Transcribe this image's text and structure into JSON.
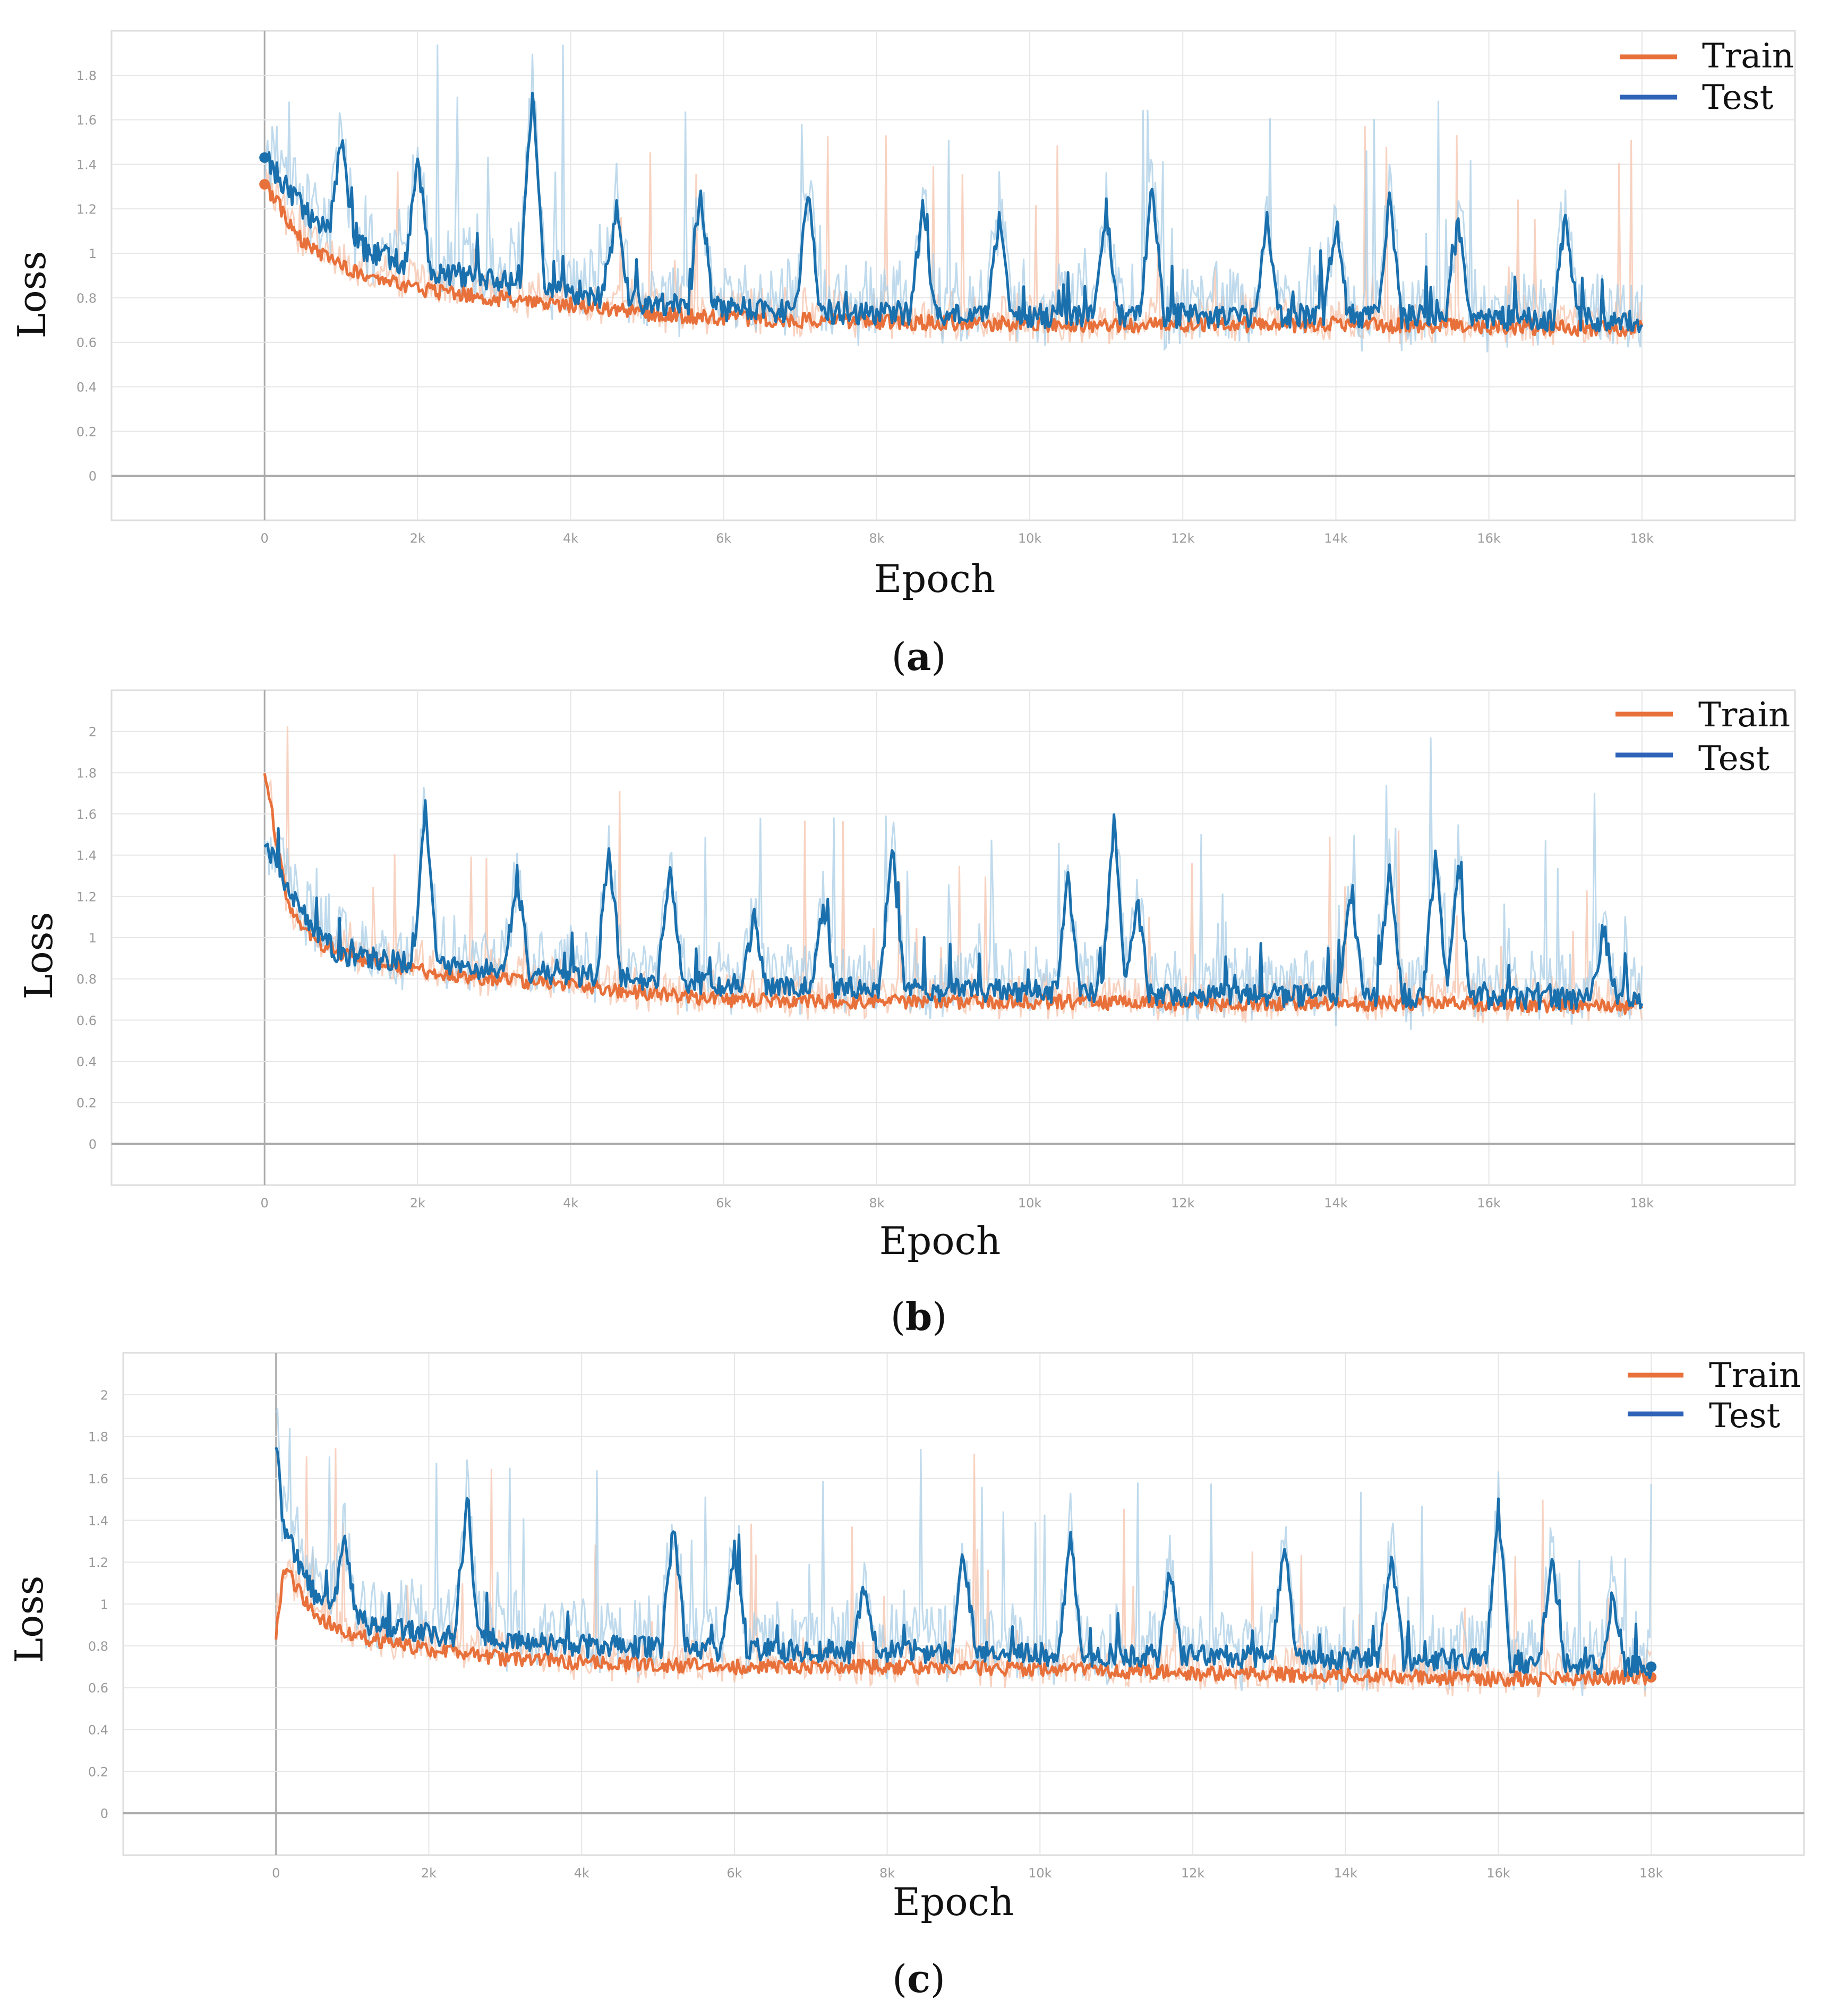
{
  "colors": {
    "train": "#e8703a",
    "test": "#1a6fad",
    "test_light": "#a9cde6",
    "train_light": "#f6c3ab",
    "grid": "#e6e6e6",
    "zero_line": "#aaaaaa",
    "frame": "#dddddd"
  },
  "chart_data": [
    {
      "type": "line",
      "panel": "a",
      "caption_open": "(",
      "caption_letter": "a",
      "caption_close": ")",
      "xlabel": "Epoch",
      "ylabel": "Loss",
      "xlim": [
        -2000,
        20000
      ],
      "ylim": [
        -0.2,
        2.0
      ],
      "x_ticks": [
        0,
        2000,
        4000,
        6000,
        8000,
        10000,
        12000,
        14000,
        16000,
        18000
      ],
      "x_tick_labels": [
        "0",
        "2k",
        "4k",
        "6k",
        "8k",
        "10k",
        "12k",
        "14k",
        "16k",
        "18k"
      ],
      "y_ticks": [
        0,
        0.2,
        0.4,
        0.6,
        0.8,
        1,
        1.2,
        1.4,
        1.6,
        1.8
      ],
      "y_tick_labels": [
        "0",
        "0.2",
        "0.4",
        "0.6",
        "0.8",
        "1",
        "1.2",
        "1.4",
        "1.6",
        "1.8"
      ],
      "legend": [
        "Train",
        "Test"
      ],
      "legend_position": "top-right",
      "series": [
        {
          "name": "Train",
          "x": [
            0,
            500,
            1000,
            1500,
            2000,
            3000,
            4000,
            5000,
            6000,
            8000,
            10000,
            12000,
            14000,
            16000,
            18000
          ],
          "values": [
            1.31,
            1.05,
            0.95,
            0.88,
            0.84,
            0.8,
            0.77,
            0.73,
            0.71,
            0.69,
            0.68,
            0.68,
            0.68,
            0.67,
            0.66
          ],
          "spikes": []
        },
        {
          "name": "Test",
          "x": [
            0,
            500,
            1000,
            1500,
            2000,
            3000,
            4000,
            5000,
            6000,
            8000,
            10000,
            12000,
            14000,
            16000,
            18000
          ],
          "values": [
            1.43,
            1.2,
            1.05,
            1.0,
            0.93,
            0.88,
            0.83,
            0.78,
            0.75,
            0.73,
            0.72,
            0.72,
            0.72,
            0.71,
            0.7
          ],
          "spikes": [
            [
              1000,
              1.52
            ],
            [
              2000,
              1.45
            ],
            [
              3500,
              1.73
            ],
            [
              4600,
              1.2
            ],
            [
              5700,
              1.28
            ],
            [
              7100,
              1.29
            ],
            [
              8600,
              1.2
            ],
            [
              9600,
              1.18
            ],
            [
              11000,
              1.2
            ],
            [
              11600,
              1.31
            ],
            [
              13100,
              1.18
            ],
            [
              14000,
              1.14
            ],
            [
              14700,
              1.24
            ],
            [
              15600,
              1.15
            ],
            [
              17000,
              1.17
            ]
          ]
        }
      ]
    },
    {
      "type": "line",
      "panel": "b",
      "caption_open": "(",
      "caption_letter": "b",
      "caption_close": ")",
      "xlabel": "Epoch",
      "ylabel": "Loss",
      "xlim": [
        -2000,
        20000
      ],
      "ylim": [
        -0.2,
        2.2
      ],
      "x_ticks": [
        0,
        2000,
        4000,
        6000,
        8000,
        10000,
        12000,
        14000,
        16000,
        18000
      ],
      "x_tick_labels": [
        "0",
        "2k",
        "4k",
        "6k",
        "8k",
        "10k",
        "12k",
        "14k",
        "16k",
        "18k"
      ],
      "y_ticks": [
        0,
        0.2,
        0.4,
        0.6,
        0.8,
        1,
        1.2,
        1.4,
        1.6,
        1.8,
        2
      ],
      "y_tick_labels": [
        "0",
        "0.2",
        "0.4",
        "0.6",
        "0.8",
        "1",
        "1.2",
        "1.4",
        "1.6",
        "1.8",
        "2"
      ],
      "legend": [
        "Train",
        "Test"
      ],
      "legend_position": "top-right",
      "series": [
        {
          "name": "Train",
          "x": [
            0,
            300,
            700,
            1000,
            1500,
            2000,
            3000,
            4000,
            5000,
            6000,
            8000,
            10000,
            12000,
            14000,
            16000,
            18000
          ],
          "values": [
            1.81,
            1.15,
            0.98,
            0.92,
            0.88,
            0.84,
            0.8,
            0.77,
            0.73,
            0.7,
            0.69,
            0.69,
            0.68,
            0.68,
            0.68,
            0.66
          ],
          "spikes": []
        },
        {
          "name": "Test",
          "x": [
            0,
            300,
            700,
            1000,
            1500,
            2000,
            3000,
            4000,
            5000,
            6000,
            8000,
            10000,
            12000,
            14000,
            16000,
            18000
          ],
          "values": [
            1.47,
            1.25,
            1.0,
            0.92,
            0.9,
            0.87,
            0.84,
            0.82,
            0.8,
            0.77,
            0.75,
            0.74,
            0.72,
            0.72,
            0.71,
            0.7
          ],
          "spikes": [
            [
              2100,
              1.63
            ],
            [
              3300,
              1.3
            ],
            [
              4500,
              1.44
            ],
            [
              5300,
              1.38
            ],
            [
              6400,
              1.1
            ],
            [
              7300,
              1.15
            ],
            [
              8200,
              1.45
            ],
            [
              10500,
              1.27
            ],
            [
              11100,
              1.55
            ],
            [
              11400,
              1.2
            ],
            [
              14200,
              1.22
            ],
            [
              14700,
              1.33
            ],
            [
              15300,
              1.4
            ],
            [
              15600,
              1.38
            ],
            [
              17500,
              1.05
            ]
          ]
        }
      ]
    },
    {
      "type": "line",
      "panel": "c",
      "caption_open": "(",
      "caption_letter": "c",
      "caption_close": ")",
      "xlabel": "Epoch",
      "ylabel": "Loss",
      "xlim": [
        -2000,
        20000
      ],
      "ylim": [
        -0.2,
        2.2
      ],
      "x_ticks": [
        0,
        2000,
        4000,
        6000,
        8000,
        10000,
        12000,
        14000,
        16000,
        18000
      ],
      "x_tick_labels": [
        "0",
        "2k",
        "4k",
        "6k",
        "8k",
        "10k",
        "12k",
        "14k",
        "16k",
        "18k"
      ],
      "y_ticks": [
        0,
        0.2,
        0.4,
        0.6,
        0.8,
        1,
        1.2,
        1.4,
        1.6,
        1.8,
        2
      ],
      "y_tick_labels": [
        "0",
        "0.2",
        "0.4",
        "0.6",
        "0.8",
        "1",
        "1.2",
        "1.4",
        "1.6",
        "1.8",
        "2"
      ],
      "legend": [
        "Train",
        "Test"
      ],
      "legend_position": "top-right",
      "series": [
        {
          "name": "Train",
          "x": [
            0,
            100,
            500,
            1000,
            2000,
            3000,
            4000,
            5000,
            6000,
            8000,
            10000,
            12000,
            14000,
            16000,
            18000
          ],
          "values": [
            0.84,
            1.18,
            0.95,
            0.85,
            0.78,
            0.74,
            0.72,
            0.71,
            0.7,
            0.7,
            0.69,
            0.67,
            0.66,
            0.64,
            0.65
          ],
          "spikes": []
        },
        {
          "name": "Test",
          "x": [
            0,
            100,
            500,
            1000,
            2000,
            3000,
            4000,
            5000,
            6000,
            8000,
            10000,
            12000,
            14000,
            16000,
            18000
          ],
          "values": [
            1.8,
            1.35,
            1.05,
            0.92,
            0.86,
            0.82,
            0.8,
            0.79,
            0.78,
            0.77,
            0.76,
            0.75,
            0.74,
            0.73,
            0.7
          ],
          "spikes": [
            [
              900,
              1.3
            ],
            [
              2500,
              1.45
            ],
            [
              5200,
              1.38
            ],
            [
              6000,
              1.25
            ],
            [
              7700,
              1.1
            ],
            [
              9000,
              1.25
            ],
            [
              10400,
              1.31
            ],
            [
              11700,
              1.16
            ],
            [
              13200,
              1.3
            ],
            [
              14600,
              1.25
            ],
            [
              16000,
              1.45
            ],
            [
              16700,
              1.21
            ],
            [
              17500,
              1.05
            ]
          ]
        }
      ]
    }
  ]
}
